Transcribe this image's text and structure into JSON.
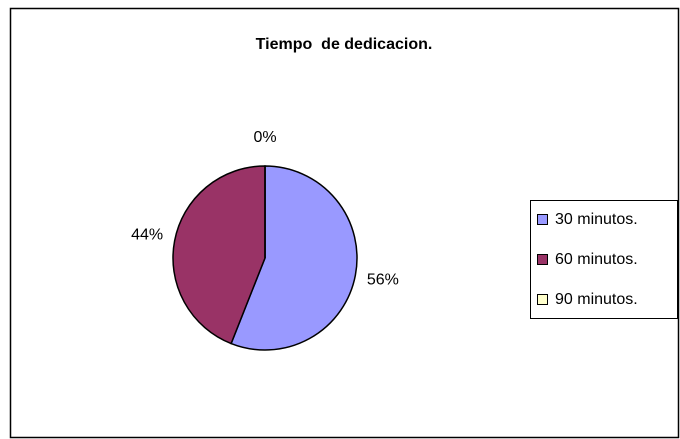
{
  "chart_data": {
    "type": "pie",
    "title": "Tiempo  de dedicacion.",
    "categories": [
      "30 minutos.",
      "60 minutos.",
      "90 minutos."
    ],
    "values": [
      56,
      44,
      0
    ],
    "value_labels": [
      "56%",
      "44%",
      "0%"
    ],
    "colors": [
      "#9999ff",
      "#993366",
      "#ffffcc"
    ],
    "legend": "right"
  }
}
